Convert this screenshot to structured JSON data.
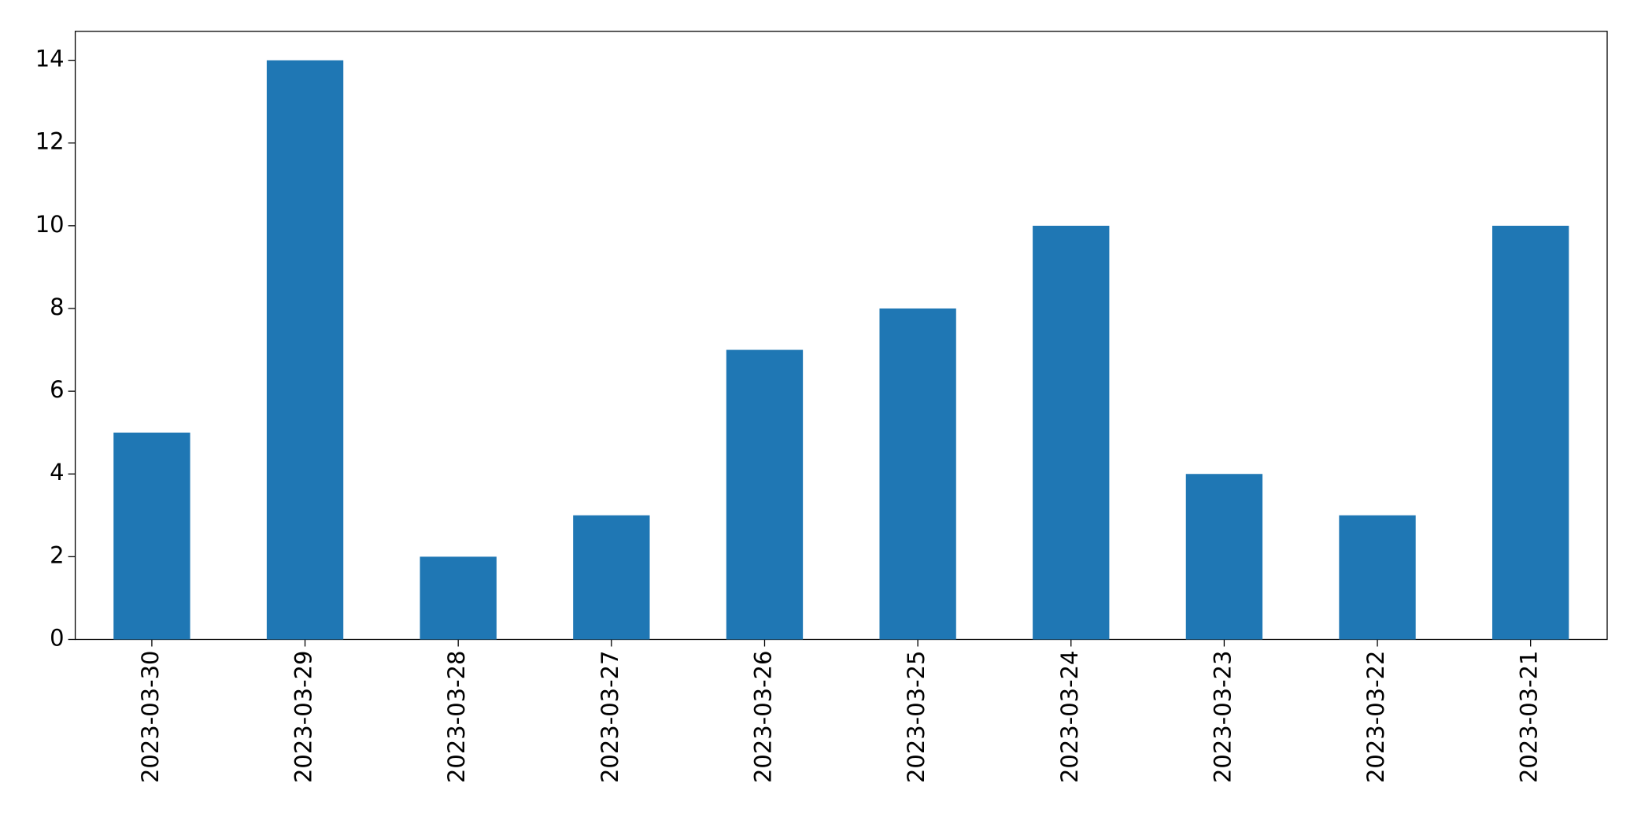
{
  "chart_data": {
    "type": "bar",
    "categories": [
      "2023-03-30",
      "2023-03-29",
      "2023-03-28",
      "2023-03-27",
      "2023-03-26",
      "2023-03-25",
      "2023-03-24",
      "2023-03-23",
      "2023-03-22",
      "2023-03-21"
    ],
    "values": [
      5,
      14,
      2,
      3,
      7,
      8,
      10,
      4,
      3,
      10
    ],
    "color": "#1f77b4",
    "ylim": [
      0,
      14.7
    ],
    "yticks": [
      0,
      2,
      4,
      6,
      8,
      10,
      12,
      14
    ],
    "grid": false
  }
}
